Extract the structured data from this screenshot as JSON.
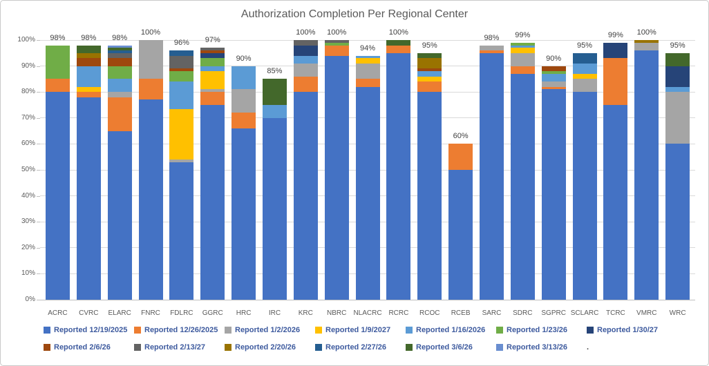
{
  "window": {
    "background": "#FFFFFF",
    "border_color": "#C9C9C9"
  },
  "colors": {
    "title_text": "#595959",
    "axis_text": "#595959",
    "bar_value_text": "#404040",
    "legend_text": "#3D5A9E",
    "gridline": "#D9D9D9"
  },
  "chart_data": {
    "type": "bar",
    "subtype": "stacked-percent",
    "title": "Authorization Completion Per Regional Center",
    "xlabel": "",
    "ylabel": "",
    "ylim": [
      0,
      100
    ],
    "grid": "horizontal",
    "legend_position": "bottom",
    "y_ticks": [
      "0%",
      "10%",
      "20%",
      "30%",
      "40%",
      "50%",
      "60%",
      "70%",
      "80%",
      "90%",
      "100%"
    ],
    "categories": [
      "ACRC",
      "CVRC",
      "ELARC",
      "FNRC",
      "FDLRC",
      "GGRC",
      "HRC",
      "IRC",
      "KRC",
      "NBRC",
      "NLACRC",
      "RCRC",
      "RCOC",
      "RCEB",
      "SARC",
      "SDRC",
      "SGPRC",
      "SCLARC",
      "TCRC",
      "VMRC",
      "WRC"
    ],
    "bar_total_labels": [
      "98%",
      "98%",
      "98%",
      "100%",
      "96%",
      "97%",
      "90%",
      "85%",
      "100%",
      "100%",
      "94%",
      "100%",
      "95%",
      "60%",
      "98%",
      "99%",
      "90%",
      "95%",
      "99%",
      "100%",
      "95%"
    ],
    "series": [
      {
        "name": "Reported 12/19/2025",
        "color": "#4472C4",
        "values": [
          80,
          78,
          65,
          77,
          53,
          75,
          66,
          70,
          80,
          94,
          82,
          95,
          80,
          50,
          95,
          87,
          81,
          80,
          75,
          96,
          60
        ]
      },
      {
        "name": "Reported 12/26/2025",
        "color": "#ED7D31",
        "values": [
          5,
          2,
          13,
          8,
          0,
          5,
          6,
          0,
          6,
          4,
          3,
          3,
          4,
          10,
          1,
          3,
          1,
          0,
          18,
          0,
          0
        ]
      },
      {
        "name": "Reported 1/2/2026",
        "color": "#A5A5A5",
        "values": [
          0,
          0,
          2,
          15,
          1,
          1,
          9,
          0,
          5,
          0,
          6,
          0,
          0,
          0,
          2,
          5,
          2,
          5,
          0,
          3,
          20
        ]
      },
      {
        "name": "Reported 1/9/2027",
        "color": "#FFC000",
        "values": [
          0,
          2,
          0,
          0,
          19.5,
          7,
          0,
          0,
          0,
          0,
          2,
          0,
          2,
          0,
          0,
          2,
          0,
          2,
          0,
          0,
          0
        ]
      },
      {
        "name": "Reported 1/16/2026",
        "color": "#5B9BD5",
        "values": [
          0,
          8,
          5,
          0,
          10.5,
          2,
          9,
          5,
          3,
          0,
          1,
          0,
          2,
          0,
          0,
          1,
          3,
          4,
          0,
          0,
          2
        ]
      },
      {
        "name": "Reported 1/23/26",
        "color": "#70AD47",
        "values": [
          13,
          0,
          5,
          0,
          4,
          3,
          0,
          0,
          0,
          1,
          0,
          0,
          0,
          0,
          0,
          1,
          1,
          0,
          0,
          0,
          0
        ]
      },
      {
        "name": "Reported 1/30/27",
        "color": "#264478",
        "values": [
          0,
          0,
          0,
          0,
          0,
          2,
          0,
          0,
          4,
          0,
          0,
          0,
          0,
          0,
          0,
          0,
          0,
          0,
          6,
          0,
          8
        ]
      },
      {
        "name": "Reported 2/6/26",
        "color": "#9E480E",
        "values": [
          0,
          3,
          3,
          0,
          1,
          1,
          0,
          0,
          0,
          0,
          0,
          0,
          1,
          0,
          0,
          0,
          2,
          0,
          0,
          0,
          0
        ]
      },
      {
        "name": "Reported 2/13/27",
        "color": "#636363",
        "values": [
          0,
          0,
          2,
          0,
          5,
          1,
          0,
          0,
          2,
          1,
          0,
          0,
          0,
          0,
          0,
          0,
          0,
          0,
          0,
          0,
          0
        ]
      },
      {
        "name": "Reported 2/20/26",
        "color": "#997300",
        "values": [
          0,
          2,
          0,
          0,
          0,
          0,
          0,
          0,
          0,
          0,
          0,
          0,
          4,
          0,
          0,
          0,
          0,
          0,
          0,
          1,
          0
        ]
      },
      {
        "name": "Reported 2/27/26",
        "color": "#255E91",
        "values": [
          0,
          0,
          1,
          0,
          2,
          0,
          0,
          0,
          0,
          0,
          0,
          0,
          0,
          0,
          0,
          0,
          0,
          4,
          0,
          0,
          0
        ]
      },
      {
        "name": "Reported 3/6/26",
        "color": "#43682B",
        "values": [
          0,
          3,
          1,
          0,
          0,
          0,
          0,
          10,
          0,
          0,
          0,
          2,
          2,
          0,
          0,
          0,
          0,
          0,
          0,
          0,
          5
        ]
      },
      {
        "name": "Reported 3/13/26",
        "color": "#698ED0",
        "values": [
          0,
          0,
          1,
          0,
          0,
          0,
          0,
          0,
          0,
          0,
          0,
          0,
          0,
          0,
          0,
          0,
          0,
          0,
          0,
          0,
          0
        ]
      }
    ],
    "legend": {
      "row1": [
        "Reported 12/19/2025",
        "Reported 12/26/2025",
        "Reported 1/2/2026",
        "Reported 1/9/2027",
        "Reported 1/16/2026",
        "Reported 1/23/26",
        "Reported 1/30/27"
      ],
      "row2": [
        "Reported 2/6/26",
        "Reported 2/13/27",
        "Reported 2/20/26",
        "Reported 2/27/26",
        "Reported 3/6/26",
        "Reported 3/13/26"
      ],
      "suffix": "."
    }
  }
}
